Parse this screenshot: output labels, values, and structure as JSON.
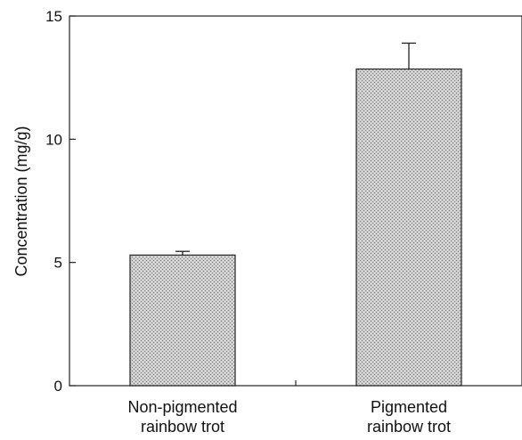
{
  "chart_data": {
    "type": "bar",
    "title": "",
    "xlabel": "",
    "ylabel": "Concentration (mg/g)",
    "ylim": [
      0,
      15
    ],
    "yticks": [
      0,
      5,
      10,
      15
    ],
    "categories": [
      [
        "Non-pigmented",
        "rainbow trot"
      ],
      [
        "Pigmented",
        "rainbow trot"
      ]
    ],
    "values": [
      5.3,
      12.85
    ],
    "errors": [
      0.15,
      1.05
    ],
    "grid": false,
    "bar_fill": "#c8c8c8",
    "bar_stroke": "#222222"
  }
}
